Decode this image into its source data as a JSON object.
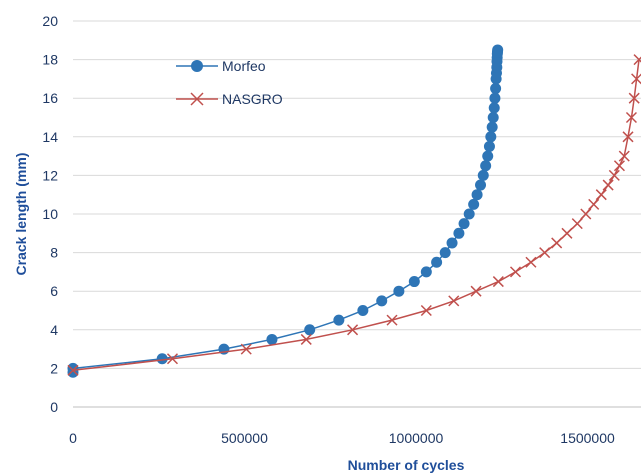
{
  "chart_data": {
    "type": "line",
    "title": "",
    "xlabel": "Number of cycles",
    "ylabel": "Crack length (mm)",
    "xlim": [
      0,
      1650000
    ],
    "ylim": [
      0,
      20
    ],
    "xticks": [
      0,
      500000,
      1000000,
      1500000
    ],
    "xtick_labels": [
      "0",
      "500000",
      "1000000",
      "1500000"
    ],
    "yticks": [
      0,
      2,
      4,
      6,
      8,
      10,
      12,
      14,
      16,
      18,
      20
    ],
    "ytick_labels": [
      "0",
      "2",
      "4",
      "6",
      "8",
      "10",
      "12",
      "14",
      "16",
      "18",
      "20"
    ],
    "grid": "horizontal",
    "legend_position": "top-left",
    "series": [
      {
        "name": "Morfeo",
        "color": "#2e75b6",
        "marker": "circle",
        "x": [
          0,
          0,
          260000,
          440000,
          580000,
          690000,
          775000,
          845000,
          900000,
          950000,
          995000,
          1030000,
          1060000,
          1085000,
          1105000,
          1125000,
          1140000,
          1155000,
          1168000,
          1178000,
          1188000,
          1196000,
          1203000,
          1209000,
          1214000,
          1218000,
          1222000,
          1225000,
          1228000,
          1230000,
          1232000,
          1233500,
          1234500,
          1235500,
          1236000,
          1236500,
          1237000,
          1237500,
          1238000
        ],
        "y": [
          1.8,
          2.0,
          2.5,
          3.0,
          3.5,
          4.0,
          4.5,
          5.0,
          5.5,
          6.0,
          6.5,
          7.0,
          7.5,
          8.0,
          8.5,
          9.0,
          9.5,
          10.0,
          10.5,
          11.0,
          11.5,
          12.0,
          12.5,
          13.0,
          13.5,
          14.0,
          14.5,
          15.0,
          15.5,
          16.0,
          16.5,
          17.0,
          17.3,
          17.6,
          17.9,
          18.1,
          18.3,
          18.4,
          18.5
        ]
      },
      {
        "name": "NASGRO",
        "color": "#c0504d",
        "marker": "x",
        "x": [
          0,
          290000,
          505000,
          680000,
          815000,
          930000,
          1030000,
          1110000,
          1175000,
          1240000,
          1290000,
          1335000,
          1375000,
          1410000,
          1440000,
          1470000,
          1495000,
          1518000,
          1540000,
          1560000,
          1578000,
          1593000,
          1607000,
          1618000,
          1628000,
          1636000,
          1643000,
          1650000
        ],
        "y": [
          1.9,
          2.5,
          3.0,
          3.5,
          4.0,
          4.5,
          5.0,
          5.5,
          6.0,
          6.5,
          7.0,
          7.5,
          8.0,
          8.5,
          9.0,
          9.5,
          10.0,
          10.5,
          11.0,
          11.5,
          12.0,
          12.5,
          13.0,
          14.0,
          15.0,
          16.0,
          17.0,
          18.0
        ]
      }
    ]
  }
}
